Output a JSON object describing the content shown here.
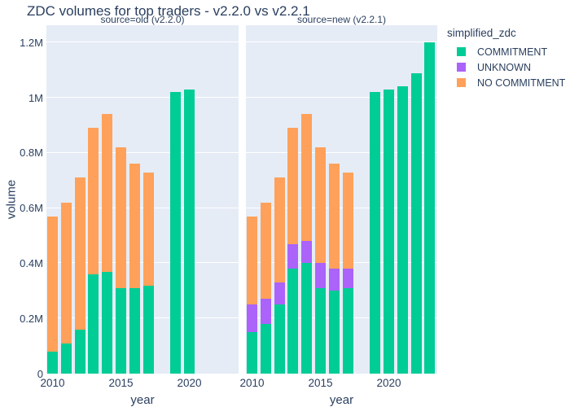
{
  "title": "ZDC volumes for top traders - v2.2.0 vs v2.2.1",
  "colors": {
    "background": "#ffffff",
    "plot_background": "#e5ecf6",
    "gridline": "#ffffff",
    "text": "#2a3f5f",
    "commitment": "#00cc96",
    "unknown": "#ab63fa",
    "no_commitment": "#ffa15a"
  },
  "legend": {
    "title": "simplified_zdc",
    "items": [
      {
        "key": "commitment",
        "label": "COMMITMENT",
        "color": "#00cc96"
      },
      {
        "key": "unknown",
        "label": "UNKNOWN",
        "color": "#ab63fa"
      },
      {
        "key": "no-commitment",
        "label": "NO COMMITMENT",
        "color": "#ffa15a"
      }
    ]
  },
  "chart_data": {
    "type": "bar",
    "stacked": true,
    "title": "ZDC volumes for top traders - v2.2.0 vs v2.2.1",
    "xlabel": "year",
    "ylabel": "volume",
    "unit": "millions",
    "ylim": [
      0,
      1.263
    ],
    "xlim": [
      2009.55,
      2023.6
    ],
    "grid": true,
    "legend_position": "right",
    "yticks": [
      {
        "value": 0,
        "label": "0"
      },
      {
        "value": 0.2,
        "label": "0.2M"
      },
      {
        "value": 0.4,
        "label": "0.4M"
      },
      {
        "value": 0.6,
        "label": "0.6M"
      },
      {
        "value": 0.8,
        "label": "0.8M"
      },
      {
        "value": 1.0,
        "label": "1M"
      },
      {
        "value": 1.2,
        "label": "1.2M"
      }
    ],
    "xticks": [
      {
        "value": 2010,
        "label": "2010"
      },
      {
        "value": 2015,
        "label": "2015"
      },
      {
        "value": 2020,
        "label": "2020"
      }
    ],
    "facets": [
      {
        "key": "old",
        "label": "source=old (v2.2.0)",
        "years": [
          2010,
          2011,
          2012,
          2013,
          2014,
          2015,
          2016,
          2017,
          2019,
          2020
        ],
        "series": [
          {
            "name": "COMMITMENT",
            "color": "#00cc96",
            "values": [
              0.08,
              0.11,
              0.16,
              0.36,
              0.37,
              0.31,
              0.31,
              0.32,
              1.02,
              1.03
            ]
          },
          {
            "name": "UNKNOWN",
            "color": "#ab63fa",
            "values": [
              0,
              0,
              0,
              0,
              0,
              0,
              0,
              0,
              0,
              0
            ]
          },
          {
            "name": "NO COMMITMENT",
            "color": "#ffa15a",
            "values": [
              0.49,
              0.51,
              0.55,
              0.53,
              0.57,
              0.51,
              0.45,
              0.41,
              0,
              0
            ]
          }
        ]
      },
      {
        "key": "new",
        "label": "source=new (v2.2.1)",
        "years": [
          2010,
          2011,
          2012,
          2013,
          2014,
          2015,
          2016,
          2017,
          2019,
          2020,
          2021,
          2022,
          2023
        ],
        "series": [
          {
            "name": "COMMITMENT",
            "color": "#00cc96",
            "values": [
              0.15,
              0.18,
              0.25,
              0.38,
              0.4,
              0.31,
              0.3,
              0.31,
              1.02,
              1.03,
              1.04,
              1.09,
              1.2
            ]
          },
          {
            "name": "UNKNOWN",
            "color": "#ab63fa",
            "values": [
              0.1,
              0.09,
              0.08,
              0.09,
              0.08,
              0.09,
              0.08,
              0.07,
              0,
              0,
              0,
              0,
              0
            ]
          },
          {
            "name": "NO COMMITMENT",
            "color": "#ffa15a",
            "values": [
              0.32,
              0.35,
              0.38,
              0.42,
              0.46,
              0.42,
              0.38,
              0.35,
              0,
              0,
              0,
              0,
              0
            ]
          }
        ]
      }
    ]
  }
}
